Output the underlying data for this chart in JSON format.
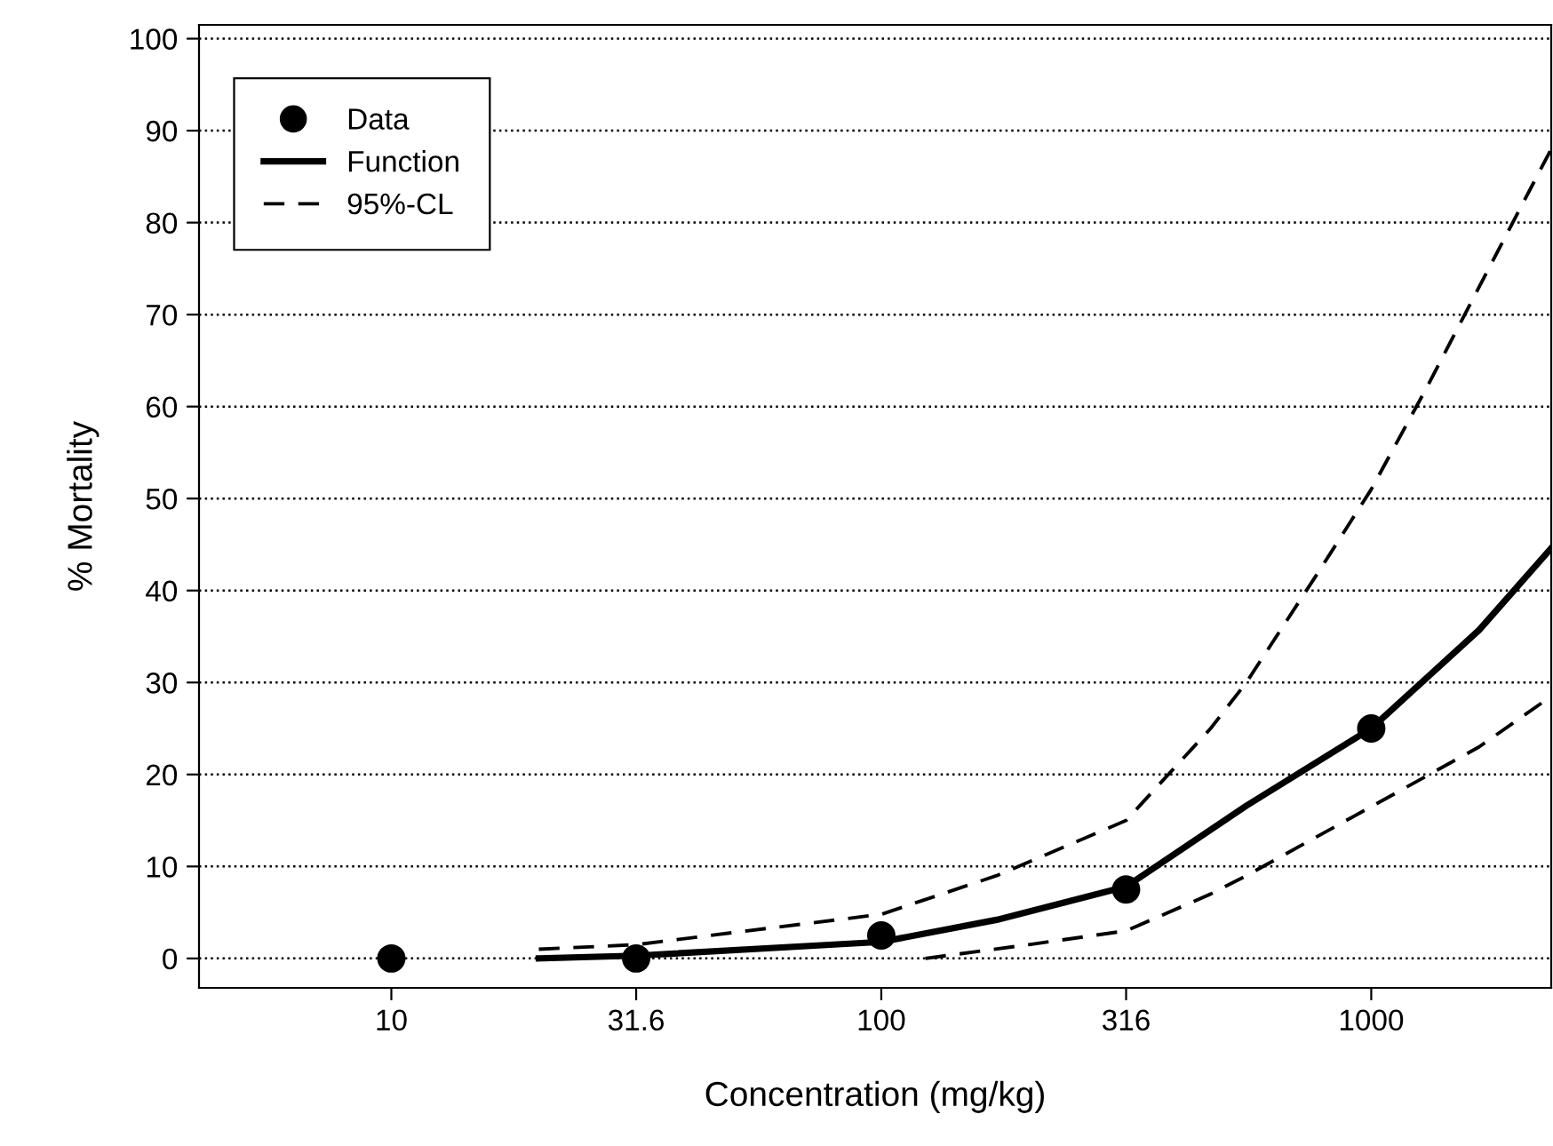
{
  "chart_data": {
    "type": "line",
    "xlabel": "Concentration (mg/kg)",
    "ylabel": "% Mortality",
    "log": "x",
    "xlim": [
      4.05,
      2330
    ],
    "xticks": [
      10,
      31.6,
      100,
      316,
      1000
    ],
    "ylim": [
      -3.2,
      101.5
    ],
    "yticks": [
      0,
      10,
      20,
      30,
      40,
      50,
      60,
      70,
      80,
      90,
      100
    ],
    "grid": "y",
    "legend": "top left",
    "series": [
      {
        "name": "Data",
        "type": "scatter",
        "marker": "circle",
        "color": "#000000",
        "x": [
          10,
          31.6,
          100,
          316,
          1000
        ],
        "values": [
          0,
          0,
          2.5,
          7.5,
          25
        ]
      },
      {
        "name": "Function",
        "line_style": "solid",
        "color": "#000000",
        "x": [
          20,
          31.6,
          100,
          172,
          316,
          556,
          1000,
          1660,
          2330
        ],
        "values": [
          0,
          0.3,
          1.8,
          4.2,
          7.8,
          16.6,
          25,
          35.7,
          44.6
        ]
      },
      {
        "name": "95%-CL",
        "line_style": "dashed",
        "color": "#000000",
        "x": [
          20,
          31.6,
          100,
          172,
          316,
          470,
          556,
          780,
          1000,
          1296,
          1660,
          2330
        ],
        "values": [
          1,
          1.5,
          4.8,
          9,
          15,
          25,
          30,
          42,
          51,
          62,
          73,
          88
        ]
      },
      {
        "line_style": "dashed",
        "color": "#000000",
        "x": [
          123,
          200,
          316,
          470,
          556,
          1000,
          1660,
          2330
        ],
        "values": [
          0,
          1.5,
          3,
          7,
          9,
          16.5,
          23,
          28.5
        ]
      }
    ]
  }
}
